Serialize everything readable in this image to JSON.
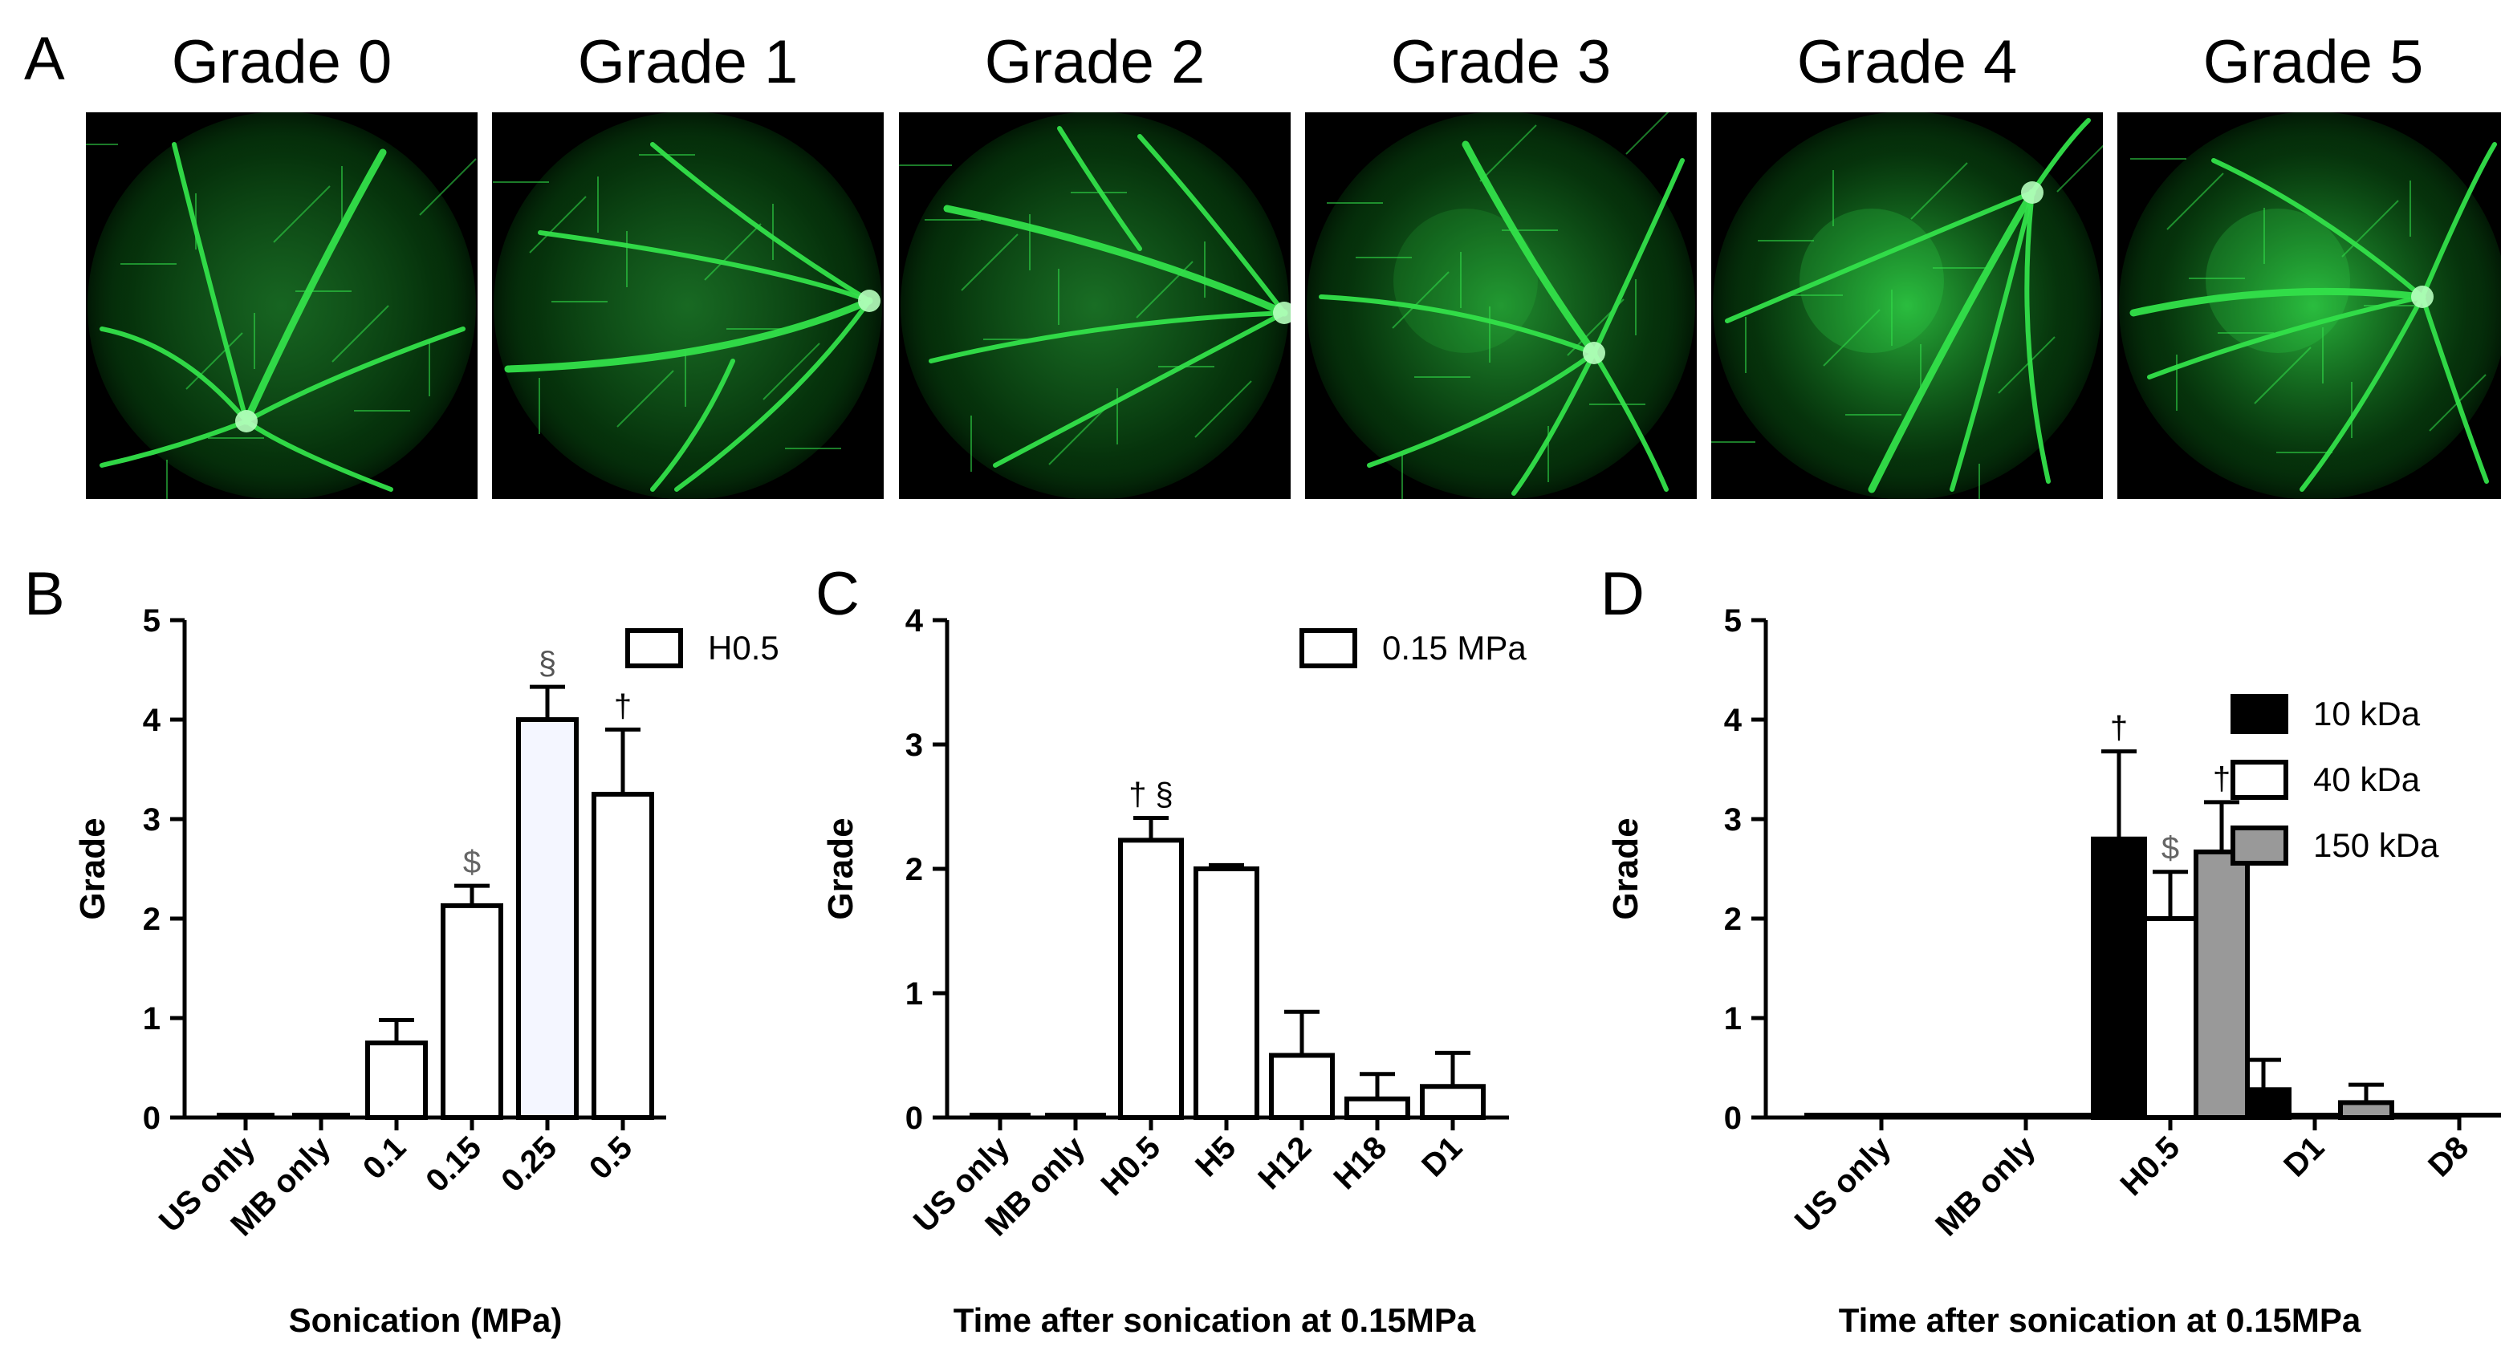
{
  "figure": {
    "panel_a_letter": "A",
    "grade_titles": [
      "Grade 0",
      "Grade 1",
      "Grade 2",
      "Grade 3",
      "Grade 4",
      "Grade 5"
    ],
    "fundus_color": "#33e04a"
  },
  "chart_data": [
    {
      "panel": "B",
      "type": "bar",
      "categories": [
        "US only",
        "MB only",
        "0.1",
        "0.15",
        "0.25",
        "0.5"
      ],
      "series": [
        {
          "name": "H0.5",
          "values": [
            0.02,
            0.02,
            0.75,
            2.13,
            4.0,
            3.25
          ],
          "errors": [
            0,
            0,
            0.23,
            0.2,
            0.33,
            0.65
          ],
          "fill": "#ffffff"
        }
      ],
      "bar_fills": [
        "#ffffff",
        "#ffffff",
        "#ffffff",
        "#ffffff",
        "#f4f6ff",
        "#ffffff"
      ],
      "annotations": [
        {
          "category_index": 3,
          "text": "$",
          "color": "#666666"
        },
        {
          "category_index": 4,
          "text": "§",
          "color": "#555555"
        },
        {
          "category_index": 5,
          "text": "†",
          "color": "#000000"
        }
      ],
      "xlabel": "Sonication (MPa)",
      "ylabel": "Grade",
      "ylim": [
        0,
        5
      ],
      "yticks": [
        "0",
        "1",
        "2",
        "3",
        "4",
        "5"
      ],
      "legend": [
        "H0.5"
      ],
      "legend_position": "top-right"
    },
    {
      "panel": "C",
      "type": "bar",
      "categories": [
        "US only",
        "MB only",
        "H0.5",
        "H5",
        "H12",
        "H18",
        "D1"
      ],
      "series": [
        {
          "name": "0.15 MPa",
          "values": [
            0.02,
            0.02,
            2.23,
            2.0,
            0.5,
            0.15,
            0.25
          ],
          "errors": [
            0,
            0,
            0.18,
            0.03,
            0.35,
            0.2,
            0.27
          ],
          "fill": "#ffffff"
        }
      ],
      "annotations": [
        {
          "category_index": 2,
          "text": "† §",
          "color": "#000000"
        }
      ],
      "xlabel": "Time after sonication at 0.15MPa",
      "ylabel": "Grade",
      "ylim": [
        0,
        4
      ],
      "yticks": [
        "0",
        "1",
        "2",
        "3",
        "4"
      ],
      "legend": [
        "0.15 MPa"
      ],
      "legend_position": "top-right"
    },
    {
      "panel": "D",
      "type": "bar",
      "categories": [
        "US only",
        "MB only",
        "H0.5",
        "D1",
        "D8"
      ],
      "series": [
        {
          "name": "10 kDa",
          "values": [
            0.02,
            0.02,
            2.8,
            0.28,
            0.02
          ],
          "errors": [
            0,
            0,
            0.88,
            0.3,
            0
          ],
          "fill": "#000000"
        },
        {
          "name": "40 kDa",
          "values": [
            0.02,
            0.02,
            2.0,
            0.02,
            0.02
          ],
          "errors": [
            0,
            0,
            0.47,
            0,
            0
          ],
          "fill": "#ffffff"
        },
        {
          "name": "150 kDa",
          "values": [
            0.02,
            0.02,
            2.67,
            0.15,
            0.02
          ],
          "errors": [
            0,
            0,
            0.5,
            0.18,
            0
          ],
          "fill": "#999999"
        }
      ],
      "annotations": [
        {
          "category_index": 2,
          "series_index": 0,
          "text": "†",
          "color": "#000000"
        },
        {
          "category_index": 2,
          "series_index": 1,
          "text": "$",
          "color": "#666666"
        },
        {
          "category_index": 2,
          "series_index": 2,
          "text": "†",
          "color": "#000000"
        }
      ],
      "xlabel": "Time after sonication at 0.15MPa",
      "ylabel": "Grade",
      "ylim": [
        0,
        5
      ],
      "yticks": [
        "0",
        "1",
        "2",
        "3",
        "4",
        "5"
      ],
      "legend": [
        "10 kDa",
        "40 kDa",
        "150 kDa"
      ],
      "legend_position": "top-right"
    }
  ]
}
